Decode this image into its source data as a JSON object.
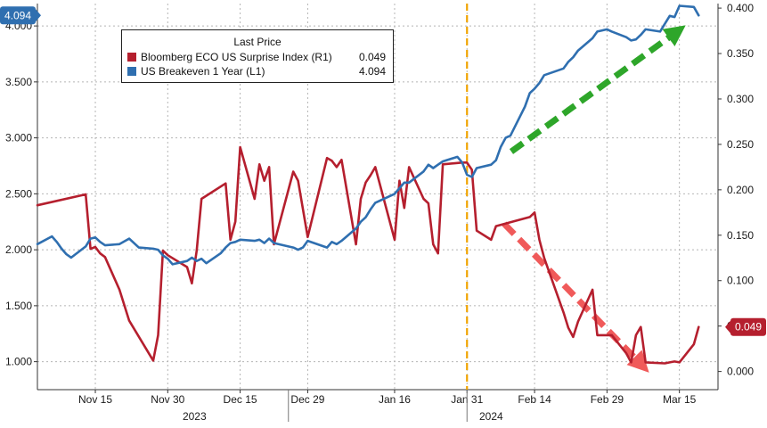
{
  "chart_data": {
    "type": "line",
    "legend": {
      "title": "Last Price",
      "placement": "top-left"
    },
    "x_labels": [
      "Nov 15",
      "Nov 30",
      "Dec 15",
      "Dec 29",
      "Jan 16",
      "Jan 31",
      "Feb 14",
      "Feb 29",
      "Mar 15"
    ],
    "year_labels": [
      "2023",
      "2024"
    ],
    "left_axis": {
      "ticks": [
        "1.000",
        "1.500",
        "2.000",
        "2.500",
        "3.000",
        "3.500",
        "4.000"
      ],
      "range": [
        0.75,
        4.2
      ]
    },
    "right_axis": {
      "ticks": [
        "0.000",
        "0.050",
        "0.100",
        "0.150",
        "0.200",
        "0.250",
        "0.300",
        "0.350",
        "0.400"
      ],
      "range": [
        -0.02,
        0.405
      ]
    },
    "grid": true,
    "series": [
      {
        "name": "Bloomberg ECO US Surprise Index",
        "axis_label": "(R1)",
        "color": "#b51f2e",
        "last_value": "0.049",
        "x": [
          "2023-11-03",
          "2023-11-13",
          "2023-11-14",
          "2023-11-15",
          "2023-11-16",
          "2023-11-17",
          "2023-11-20",
          "2023-11-22",
          "2023-11-27",
          "2023-11-28",
          "2023-11-29",
          "2023-11-30",
          "2023-12-04",
          "2023-12-05",
          "2023-12-06",
          "2023-12-07",
          "2023-12-12",
          "2023-12-13",
          "2023-12-14",
          "2023-12-15",
          "2023-12-18",
          "2023-12-19",
          "2023-12-20",
          "2023-12-21",
          "2023-12-22",
          "2023-12-26",
          "2023-12-27",
          "2023-12-29",
          "2024-01-02",
          "2024-01-03",
          "2024-01-04",
          "2024-01-05",
          "2024-01-08",
          "2024-01-09",
          "2024-01-10",
          "2024-01-11",
          "2024-01-12",
          "2024-01-16",
          "2024-01-17",
          "2024-01-18",
          "2024-01-19",
          "2024-01-22",
          "2024-01-23",
          "2024-01-24",
          "2024-01-25",
          "2024-01-26",
          "2024-01-30",
          "2024-01-31",
          "2024-02-01",
          "2024-02-02",
          "2024-02-05",
          "2024-02-06",
          "2024-02-13",
          "2024-02-14",
          "2024-02-15",
          "2024-02-16",
          "2024-02-20",
          "2024-02-21",
          "2024-02-22",
          "2024-02-23",
          "2024-02-26",
          "2024-02-27",
          "2024-02-28",
          "2024-02-29",
          "2024-03-01",
          "2024-03-04",
          "2024-03-05",
          "2024-03-06",
          "2024-03-07",
          "2024-03-08",
          "2024-03-12",
          "2024-03-13",
          "2024-03-14",
          "2024-03-15",
          "2024-03-18",
          "2024-03-19"
        ],
        "y": [
          0.183,
          0.195,
          0.135,
          0.137,
          0.13,
          0.126,
          0.09,
          0.056,
          0.012,
          0.04,
          0.133,
          0.128,
          0.115,
          0.097,
          0.133,
          0.19,
          0.207,
          0.145,
          0.165,
          0.247,
          0.19,
          0.228,
          0.21,
          0.225,
          0.14,
          0.22,
          0.21,
          0.148,
          0.235,
          0.232,
          0.225,
          0.233,
          0.14,
          0.19,
          0.208,
          0.216,
          0.225,
          0.145,
          0.21,
          0.18,
          0.225,
          0.19,
          0.185,
          0.14,
          0.13,
          0.228,
          0.23,
          0.23,
          0.222,
          0.155,
          0.145,
          0.16,
          0.17,
          0.175,
          0.145,
          0.125,
          0.065,
          0.048,
          0.038,
          0.055,
          0.09,
          0.04,
          0.04,
          0.04,
          0.04,
          0.02,
          0.01,
          0.04,
          0.049,
          0.01,
          0.009,
          0.01,
          0.011,
          0.01,
          0.03,
          0.049
        ]
      },
      {
        "name": "US Breakeven 1 Year",
        "axis_label": "(L1)",
        "color": "#2f6fb0",
        "last_value": "4.094",
        "x": [
          "2023-11-03",
          "2023-11-06",
          "2023-11-07",
          "2023-11-08",
          "2023-11-09",
          "2023-11-10",
          "2023-11-13",
          "2023-11-14",
          "2023-11-15",
          "2023-11-16",
          "2023-11-17",
          "2023-11-20",
          "2023-11-22",
          "2023-11-24",
          "2023-11-27",
          "2023-11-28",
          "2023-11-29",
          "2023-11-30",
          "2023-12-01",
          "2023-12-04",
          "2023-12-05",
          "2023-12-06",
          "2023-12-07",
          "2023-12-08",
          "2023-12-11",
          "2023-12-12",
          "2023-12-13",
          "2023-12-14",
          "2023-12-15",
          "2023-12-18",
          "2023-12-19",
          "2023-12-20",
          "2023-12-21",
          "2023-12-22",
          "2023-12-26",
          "2023-12-27",
          "2023-12-28",
          "2023-12-29",
          "2024-01-02",
          "2024-01-03",
          "2024-01-04",
          "2024-01-05",
          "2024-01-08",
          "2024-01-09",
          "2024-01-10",
          "2024-01-11",
          "2024-01-12",
          "2024-01-16",
          "2024-01-17",
          "2024-01-18",
          "2024-01-19",
          "2024-01-22",
          "2024-01-23",
          "2024-01-24",
          "2024-01-25",
          "2024-01-26",
          "2024-01-29",
          "2024-01-30",
          "2024-01-31",
          "2024-02-01",
          "2024-02-02",
          "2024-02-05",
          "2024-02-06",
          "2024-02-07",
          "2024-02-08",
          "2024-02-09",
          "2024-02-12",
          "2024-02-13",
          "2024-02-14",
          "2024-02-15",
          "2024-02-16",
          "2024-02-20",
          "2024-02-21",
          "2024-02-22",
          "2024-02-23",
          "2024-02-26",
          "2024-02-27",
          "2024-02-28",
          "2024-02-29",
          "2024-03-01",
          "2024-03-04",
          "2024-03-05",
          "2024-03-06",
          "2024-03-07",
          "2024-03-08",
          "2024-03-11",
          "2024-03-12",
          "2024-03-13",
          "2024-03-14",
          "2024-03-15",
          "2024-03-18",
          "2024-03-19"
        ],
        "y": [
          2.05,
          2.12,
          2.07,
          2.01,
          1.96,
          1.93,
          2.03,
          2.1,
          2.11,
          2.07,
          2.04,
          2.05,
          2.1,
          2.02,
          2.01,
          2.0,
          1.95,
          1.92,
          1.87,
          1.9,
          1.93,
          1.9,
          1.92,
          1.88,
          1.97,
          2.02,
          2.06,
          2.07,
          2.09,
          2.08,
          2.09,
          2.06,
          2.1,
          2.06,
          2.02,
          2.0,
          2.02,
          2.08,
          2.02,
          2.07,
          2.05,
          2.08,
          2.19,
          2.25,
          2.29,
          2.36,
          2.42,
          2.5,
          2.55,
          2.6,
          2.6,
          2.7,
          2.76,
          2.73,
          2.76,
          2.79,
          2.83,
          2.78,
          2.67,
          2.65,
          2.73,
          2.76,
          2.8,
          2.92,
          3.0,
          3.02,
          3.28,
          3.4,
          3.44,
          3.49,
          3.56,
          3.62,
          3.68,
          3.72,
          3.78,
          3.89,
          3.95,
          3.96,
          3.97,
          3.95,
          3.9,
          3.87,
          3.88,
          3.92,
          3.97,
          3.95,
          4.02,
          4.09,
          4.08,
          4.18,
          4.17,
          4.094
        ]
      }
    ],
    "event_line_date": "2024-01-31",
    "x_range": [
      "2023-11-03",
      "2024-03-23"
    ]
  }
}
